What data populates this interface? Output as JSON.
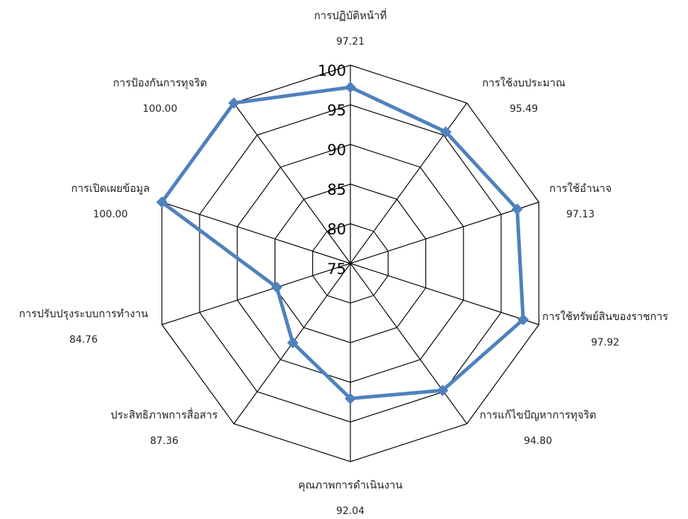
{
  "chart_data": {
    "type": "radar",
    "title": "",
    "categories": [
      "การปฏิบัติหน้าที่",
      "การใช้งบประมาณ",
      "การใช้อำนาจ",
      "การใช้ทรัพย์สินของราชการ",
      "การแก้ไขปัญหาการทุจริต",
      "คุณภาพการดำเนินงาน",
      "ประสิทธิภาพการสื่อสาร",
      "การปรับปรุงระบบการทำงาน",
      "การเปิดเผยข้อมูล",
      "การป้องกันการทุจริต"
    ],
    "value_labels": [
      "97.21",
      "95.49",
      "97.13",
      "97.92",
      "94.80",
      "92.04",
      "87.36",
      "84.76",
      "100.00",
      "100.00"
    ],
    "series": [
      {
        "values": [
          97.21,
          95.49,
          97.13,
          97.92,
          94.8,
          92.04,
          87.36,
          84.76,
          100.0,
          100.0
        ]
      }
    ],
    "rlim": [
      75,
      100
    ],
    "ticks": [
      "75",
      "80",
      "85",
      "90",
      "95",
      "100"
    ],
    "grid": true,
    "colors": {
      "series": "#4f81bd",
      "grid": "#000000"
    }
  }
}
